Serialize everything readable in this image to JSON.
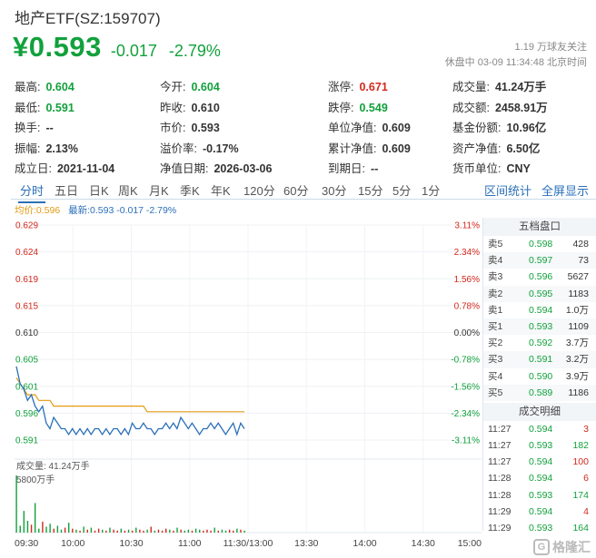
{
  "header": {
    "title": "地产ETF(SZ:159707)",
    "price": "¥0.593",
    "change": "-0.017",
    "change_pct": "-2.79%",
    "follow": "1.19 万球友关注",
    "status": "休盘中 03-09 11:34:48 北京时间"
  },
  "stats": [
    [
      {
        "label": "最高:",
        "value": "0.604",
        "color": "green"
      },
      {
        "label": "今开:",
        "value": "0.604",
        "color": "green"
      },
      {
        "label": "涨停:",
        "value": "0.671",
        "color": "red"
      },
      {
        "label": "成交量:",
        "value": "41.24万手",
        "color": ""
      }
    ],
    [
      {
        "label": "最低:",
        "value": "0.591",
        "color": "green"
      },
      {
        "label": "昨收:",
        "value": "0.610",
        "color": ""
      },
      {
        "label": "跌停:",
        "value": "0.549",
        "color": "green"
      },
      {
        "label": "成交额:",
        "value": "2458.91万",
        "color": ""
      }
    ],
    [
      {
        "label": "换手:",
        "value": "--",
        "color": ""
      },
      {
        "label": "市价:",
        "value": "0.593",
        "color": ""
      },
      {
        "label": "单位净值:",
        "value": "0.609",
        "color": ""
      },
      {
        "label": "基金份额:",
        "value": "10.96亿",
        "color": ""
      }
    ],
    [
      {
        "label": "振幅:",
        "value": "2.13%",
        "color": ""
      },
      {
        "label": "溢价率:",
        "value": "-0.17%",
        "color": ""
      },
      {
        "label": "累计净值:",
        "value": "0.609",
        "color": ""
      },
      {
        "label": "资产净值:",
        "value": "6.50亿",
        "color": ""
      }
    ],
    [
      {
        "label": "成立日:",
        "value": "2021-11-04",
        "color": ""
      },
      {
        "label": "净值日期:",
        "value": "2026-03-06",
        "color": ""
      },
      {
        "label": "到期日:",
        "value": "--",
        "color": ""
      },
      {
        "label": "货币单位:",
        "value": "CNY",
        "color": ""
      }
    ]
  ],
  "tabs": [
    "分时",
    "五日",
    "日K",
    "周K",
    "月K",
    "季K",
    "年K",
    "120分",
    "60分",
    "30分",
    "15分",
    "5分",
    "1分"
  ],
  "active_tab": "分时",
  "tab_links": {
    "interval_stats": "区间统计",
    "fullscreen": "全屏显示"
  },
  "legend": {
    "avg": "均价:0.596",
    "latest": "最新:0.593 -0.017 -2.79%"
  },
  "order_book": {
    "title": "五档盘口",
    "rows": [
      {
        "label": "卖5",
        "price": "0.598",
        "volume": "428"
      },
      {
        "label": "卖4",
        "price": "0.597",
        "volume": "73"
      },
      {
        "label": "卖3",
        "price": "0.596",
        "volume": "5627"
      },
      {
        "label": "卖2",
        "price": "0.595",
        "volume": "1183"
      },
      {
        "label": "卖1",
        "price": "0.594",
        "volume": "1.0万"
      },
      {
        "label": "买1",
        "price": "0.593",
        "volume": "1109"
      },
      {
        "label": "买2",
        "price": "0.592",
        "volume": "3.7万"
      },
      {
        "label": "买3",
        "price": "0.591",
        "volume": "3.2万"
      },
      {
        "label": "买4",
        "price": "0.590",
        "volume": "3.9万"
      },
      {
        "label": "买5",
        "price": "0.589",
        "volume": "1186"
      }
    ]
  },
  "trades": {
    "title": "成交明细",
    "rows": [
      {
        "time": "11:27",
        "price": "0.594",
        "volume": "3",
        "color": "red"
      },
      {
        "time": "11:27",
        "price": "0.593",
        "volume": "182",
        "color": "green"
      },
      {
        "time": "11:27",
        "price": "0.594",
        "volume": "100",
        "color": "red"
      },
      {
        "time": "11:28",
        "price": "0.594",
        "volume": "6",
        "color": "red"
      },
      {
        "time": "11:28",
        "price": "0.593",
        "volume": "174",
        "color": "green"
      },
      {
        "time": "11:29",
        "price": "0.594",
        "volume": "4",
        "color": "red"
      },
      {
        "time": "11:29",
        "price": "0.593",
        "volume": "164",
        "color": "green"
      }
    ]
  },
  "watermark": "格隆汇",
  "colors": {
    "up": "#d4281c",
    "down": "#12a13c",
    "avg_line": "#e39a12",
    "price_line": "#2a6fb8",
    "accent": "#2a6fb8"
  },
  "chart_data": {
    "type": "line",
    "y_ticks": [
      "0.629",
      "0.624",
      "0.619",
      "0.615",
      "0.610",
      "0.605",
      "0.601",
      "0.596",
      "0.591"
    ],
    "pct_ticks": [
      "3.11%",
      "2.34%",
      "1.56%",
      "0.78%",
      "0.00%",
      "-0.78%",
      "-1.56%",
      "-2.34%",
      "-3.11%"
    ],
    "x_ticks": [
      "09:30",
      "10:00",
      "10:30",
      "11:00",
      "11:30/13:00",
      "13:30",
      "14:00",
      "14:30",
      "15:00"
    ],
    "ylim": [
      0.591,
      0.629
    ],
    "prev_close": 0.61,
    "volume_label": "成交量: 41.24万手",
    "volume_tick": "5800万手",
    "series": [
      {
        "name": "均价",
        "values": [
          0.602,
          0.601,
          0.6,
          0.599,
          0.599,
          0.599,
          0.598,
          0.598,
          0.598,
          0.598,
          0.597,
          0.597,
          0.597,
          0.597,
          0.597,
          0.597,
          0.597,
          0.597,
          0.597,
          0.597,
          0.597,
          0.597,
          0.597,
          0.597,
          0.597,
          0.597,
          0.597,
          0.597,
          0.597,
          0.597,
          0.597,
          0.597,
          0.597,
          0.597,
          0.597,
          0.596,
          0.596,
          0.596,
          0.596,
          0.596,
          0.596,
          0.596,
          0.596,
          0.596,
          0.596,
          0.596,
          0.596,
          0.596,
          0.596,
          0.596,
          0.596,
          0.596,
          0.596,
          0.596,
          0.596,
          0.596,
          0.596,
          0.596,
          0.596,
          0.596,
          0.596,
          0.596
        ]
      },
      {
        "name": "最新",
        "values": [
          0.604,
          0.601,
          0.6,
          0.598,
          0.599,
          0.597,
          0.596,
          0.597,
          0.594,
          0.593,
          0.595,
          0.594,
          0.593,
          0.593,
          0.592,
          0.593,
          0.592,
          0.593,
          0.592,
          0.593,
          0.592,
          0.593,
          0.593,
          0.592,
          0.593,
          0.592,
          0.593,
          0.593,
          0.592,
          0.593,
          0.592,
          0.594,
          0.593,
          0.593,
          0.594,
          0.593,
          0.593,
          0.592,
          0.593,
          0.593,
          0.594,
          0.593,
          0.594,
          0.593,
          0.595,
          0.594,
          0.593,
          0.594,
          0.593,
          0.592,
          0.593,
          0.593,
          0.594,
          0.593,
          0.594,
          0.593,
          0.592,
          0.593,
          0.594,
          0.592,
          0.594,
          0.593
        ]
      }
    ],
    "volumes": [
      58,
      7,
      22,
      12,
      8,
      30,
      4,
      11,
      6,
      9,
      4,
      7,
      3,
      5,
      10,
      4,
      3,
      2,
      6,
      3,
      5,
      2,
      4,
      3,
      2,
      5,
      3,
      2,
      4,
      2,
      3,
      2,
      5,
      3,
      2,
      3,
      6,
      2,
      3,
      2,
      4,
      3,
      2,
      5,
      3,
      2,
      3,
      2,
      4,
      3,
      2,
      3,
      2,
      5,
      2,
      3,
      2,
      3,
      2,
      4,
      3,
      2
    ]
  }
}
